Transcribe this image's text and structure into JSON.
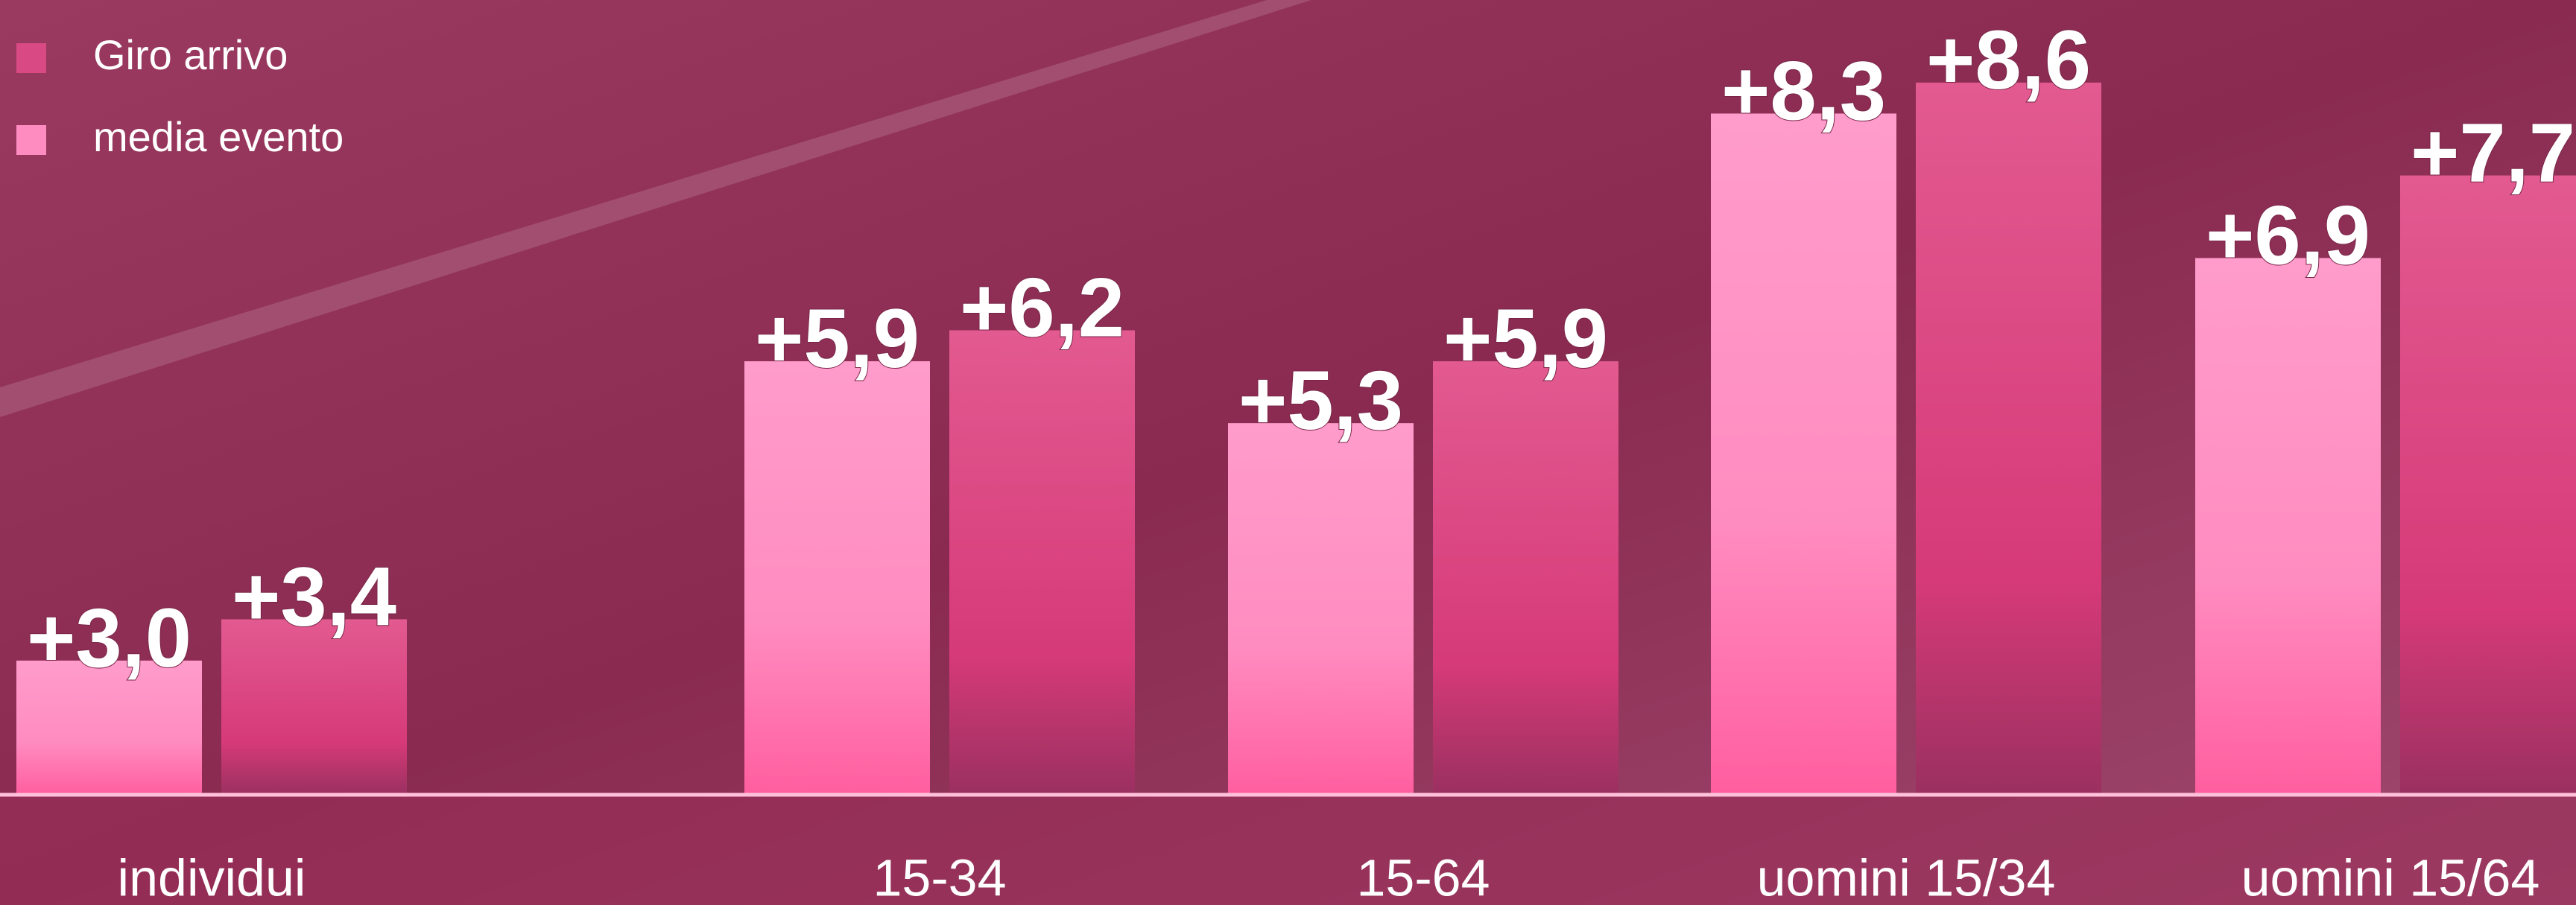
{
  "chart_data": {
    "type": "bar",
    "categories": [
      "individui",
      "15-34",
      "15-64",
      "uomini 15/34",
      "uomini 15/64"
    ],
    "series": [
      {
        "name": "media evento",
        "color": "#ff8cc0",
        "values": [
          3.0,
          5.9,
          5.3,
          8.3,
          6.9
        ],
        "value_labels": [
          "+3,0",
          "+5,9",
          "+5,3",
          "+8,3",
          "+6,9"
        ]
      },
      {
        "name": "Giro arrivo",
        "color": "#d94a85",
        "values": [
          3.4,
          6.2,
          5.9,
          8.6,
          7.7
        ],
        "value_labels": [
          "+3,4",
          "+6,2",
          "+5,9",
          "+8,6",
          "+7,7"
        ]
      }
    ],
    "ylim": [
      1.7,
      9.4
    ],
    "legend": "top-left"
  }
}
